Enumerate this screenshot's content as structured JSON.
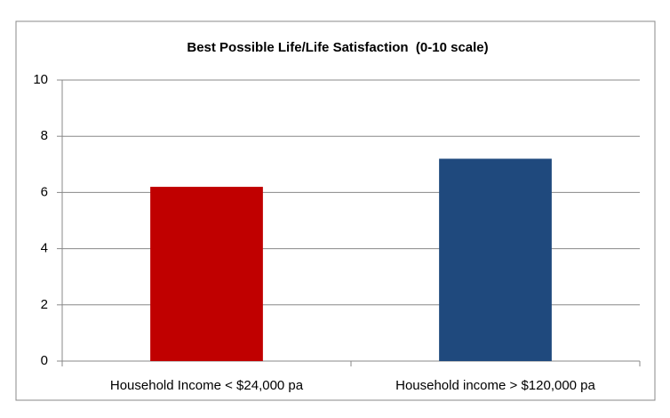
{
  "chart_data": {
    "type": "bar",
    "title": "Best Possible Life/Life Satisfaction  (0-10 scale)",
    "categories": [
      "Household Income < $24,000 pa",
      "Household income > $120,000 pa"
    ],
    "values": [
      6.2,
      7.2
    ],
    "colors": [
      "#c00000",
      "#1f497d"
    ],
    "ylim": [
      0,
      10
    ],
    "yticks": [
      0,
      2,
      4,
      6,
      8,
      10
    ],
    "grid": true
  }
}
